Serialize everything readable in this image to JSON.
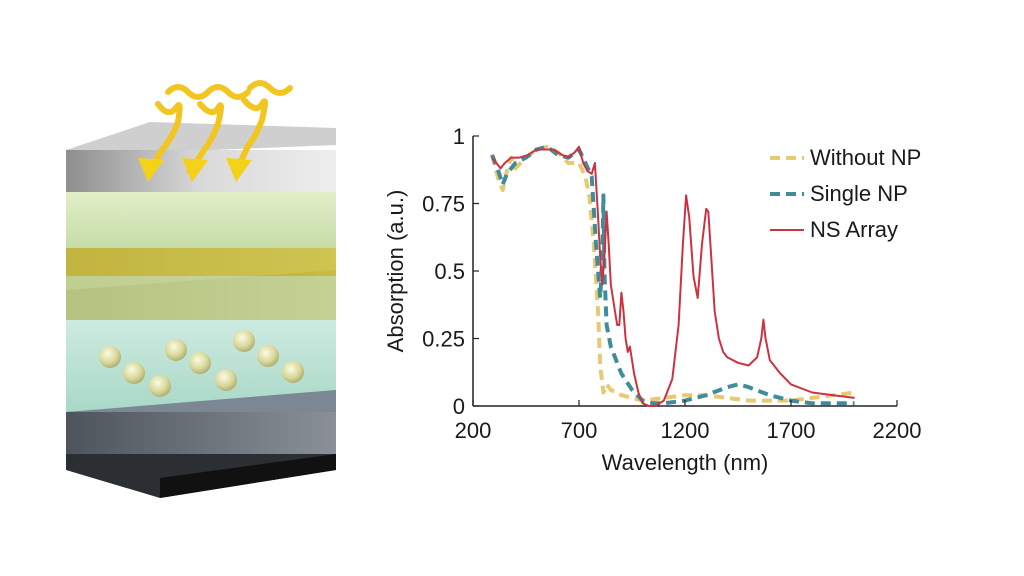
{
  "illustration": {
    "description_icon": "layered-device-with-nanoparticles",
    "colors": {
      "top_layer": "#c8c8c8",
      "green_layer": "#cfe4b4",
      "gold_layer": "#b9ab2e",
      "body": "#bfe3d6",
      "base": "#6a7078",
      "particles": "#d8d79a",
      "light_waves": "#f2c51f"
    }
  },
  "chart_data": {
    "type": "line",
    "title": "",
    "xlabel": "Wavelength (nm)",
    "ylabel": "Absorption (a.u.)",
    "xlim": [
      200,
      2200
    ],
    "ylim": [
      0,
      1
    ],
    "xticks": [
      200,
      700,
      1200,
      1700,
      2200
    ],
    "xtick_labels": [
      "200",
      "700",
      "1200",
      "1700",
      "2200"
    ],
    "yticks": [
      0,
      0.25,
      0.5,
      0.75,
      1
    ],
    "ytick_labels": [
      "0",
      "0.25",
      "0.5",
      "0.75",
      "1"
    ],
    "legend_position": "top-right",
    "grid": false,
    "series": [
      {
        "name": "Without NP",
        "color": "#e8c870",
        "style": "dashed",
        "x": [
          290,
          320,
          340,
          360,
          380,
          400,
          450,
          500,
          550,
          600,
          650,
          700,
          730,
          750,
          770,
          790,
          800,
          815,
          830,
          850,
          900,
          950,
          1000,
          1100,
          1200,
          1300,
          1400,
          1500,
          1600,
          1700,
          1800,
          1900,
          2000
        ],
        "y": [
          0.93,
          0.84,
          0.8,
          0.87,
          0.92,
          0.88,
          0.92,
          0.95,
          0.96,
          0.94,
          0.9,
          0.9,
          0.85,
          0.77,
          0.6,
          0.35,
          0.15,
          0.05,
          0.08,
          0.06,
          0.04,
          0.03,
          0.02,
          0.03,
          0.04,
          0.04,
          0.03,
          0.02,
          0.02,
          0.02,
          0.03,
          0.04,
          0.05
        ]
      },
      {
        "name": "Single NP",
        "color": "#3f8d9a",
        "style": "dashed",
        "x": [
          290,
          320,
          340,
          360,
          400,
          450,
          500,
          550,
          600,
          650,
          700,
          730,
          760,
          780,
          800,
          810,
          815,
          820,
          830,
          850,
          900,
          950,
          1000,
          1050,
          1100,
          1200,
          1300,
          1400,
          1450,
          1500,
          1600,
          1700,
          1800,
          1900,
          2000
        ],
        "y": [
          0.93,
          0.87,
          0.82,
          0.86,
          0.9,
          0.92,
          0.95,
          0.96,
          0.93,
          0.92,
          0.95,
          0.9,
          0.85,
          0.6,
          0.4,
          0.55,
          0.78,
          0.5,
          0.3,
          0.22,
          0.12,
          0.06,
          0.02,
          0.01,
          0.01,
          0.02,
          0.04,
          0.07,
          0.08,
          0.07,
          0.04,
          0.02,
          0.01,
          0.01,
          0.01
        ]
      },
      {
        "name": "NS Array",
        "color": "#cc3340",
        "style": "solid",
        "x": [
          290,
          310,
          330,
          350,
          380,
          420,
          460,
          500,
          540,
          580,
          620,
          650,
          680,
          700,
          720,
          740,
          760,
          775,
          790,
          800,
          810,
          820,
          830,
          840,
          850,
          860,
          870,
          880,
          890,
          900,
          910,
          920,
          930,
          940,
          950,
          960,
          980,
          1000,
          1030,
          1060,
          1100,
          1140,
          1170,
          1190,
          1205,
          1220,
          1240,
          1260,
          1280,
          1300,
          1310,
          1320,
          1340,
          1360,
          1380,
          1400,
          1450,
          1500,
          1540,
          1560,
          1570,
          1580,
          1600,
          1650,
          1700,
          1800,
          1900,
          2000
        ],
        "y": [
          0.92,
          0.9,
          0.88,
          0.9,
          0.92,
          0.92,
          0.93,
          0.95,
          0.95,
          0.95,
          0.93,
          0.92,
          0.94,
          0.96,
          0.9,
          0.87,
          0.86,
          0.9,
          0.7,
          0.55,
          0.45,
          0.55,
          0.72,
          0.6,
          0.45,
          0.4,
          0.35,
          0.3,
          0.3,
          0.42,
          0.35,
          0.25,
          0.2,
          0.22,
          0.17,
          0.12,
          0.05,
          0.01,
          0.0,
          0.0,
          0.02,
          0.1,
          0.3,
          0.6,
          0.78,
          0.7,
          0.48,
          0.4,
          0.6,
          0.73,
          0.72,
          0.6,
          0.35,
          0.25,
          0.2,
          0.18,
          0.16,
          0.15,
          0.18,
          0.25,
          0.32,
          0.25,
          0.17,
          0.12,
          0.08,
          0.05,
          0.04,
          0.03
        ]
      }
    ]
  }
}
